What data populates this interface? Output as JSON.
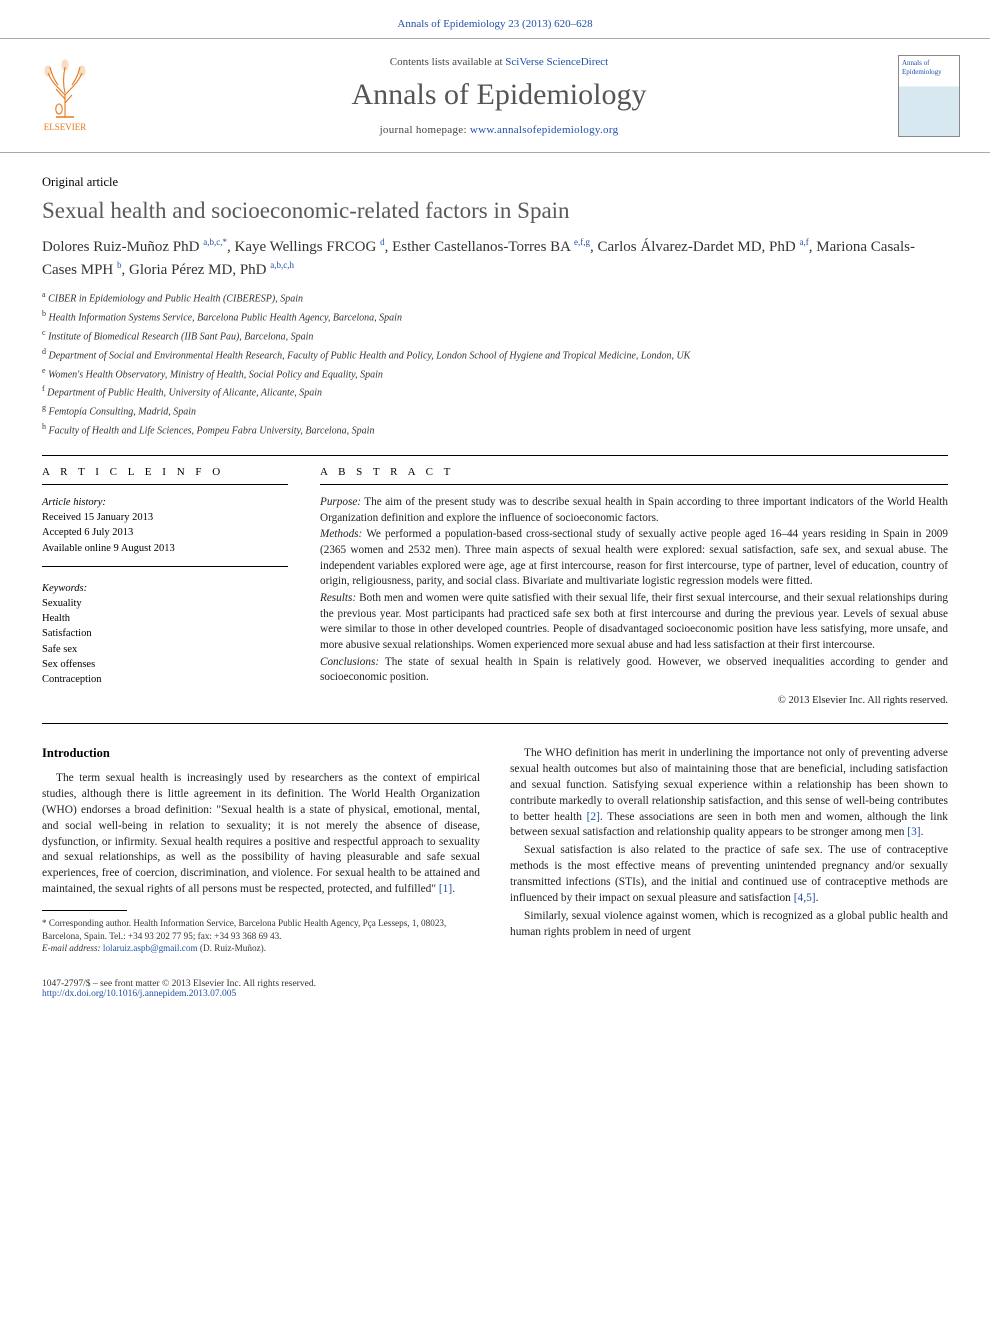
{
  "header_citation": "Annals of Epidemiology 23 (2013) 620–628",
  "journal_banner": {
    "contents_text": "Contents lists available at ",
    "sd_link": "SciVerse ScienceDirect",
    "journal_name": "Annals of Epidemiology",
    "homepage_prefix": "journal homepage: ",
    "homepage_url": "www.annalsofepidemiology.org",
    "publisher": "ELSEVIER",
    "cover_label_top": "Annals of",
    "cover_label_bottom": "Epidemiology"
  },
  "article": {
    "type": "Original article",
    "title": "Sexual health and socioeconomic-related factors in Spain",
    "authors_html": "Dolores Ruiz-Muñoz PhD <sup>a,b,c,*</sup>, Kaye Wellings FRCOG <sup>d</sup>, Esther Castellanos-Torres BA <sup>e,f,g</sup>, Carlos Álvarez-Dardet MD, PhD <sup>a,f</sup>, Mariona Casals-Cases MPH <sup>b</sup>, Gloria Pérez MD, PhD <sup>a,b,c,h</sup>",
    "affiliations": [
      "a CIBER in Epidemiology and Public Health (CIBERESP), Spain",
      "b Health Information Systems Service, Barcelona Public Health Agency, Barcelona, Spain",
      "c Institute of Biomedical Research (IIB Sant Pau), Barcelona, Spain",
      "d Department of Social and Environmental Health Research, Faculty of Public Health and Policy, London School of Hygiene and Tropical Medicine, London, UK",
      "e Women's Health Observatory, Ministry of Health, Social Policy and Equality, Spain",
      "f Department of Public Health, University of Alicante, Alicante, Spain",
      "g Femtopía Consulting, Madrid, Spain",
      "h Faculty of Health and Life Sciences, Pompeu Fabra University, Barcelona, Spain"
    ]
  },
  "article_info": {
    "heading": "A R T I C L E   I N F O",
    "history_title": "Article history:",
    "received": "Received 15 January 2013",
    "accepted": "Accepted 6 July 2013",
    "online": "Available online 9 August 2013",
    "keywords_title": "Keywords:",
    "keywords": [
      "Sexuality",
      "Health",
      "Satisfaction",
      "Safe sex",
      "Sex offenses",
      "Contraception"
    ]
  },
  "abstract": {
    "heading": "A B S T R A C T",
    "purpose_lead": "Purpose:",
    "purpose": " The aim of the present study was to describe sexual health in Spain according to three important indicators of the World Health Organization definition and explore the influence of socioeconomic factors.",
    "methods_lead": "Methods:",
    "methods": " We performed a population-based cross-sectional study of sexually active people aged 16–44 years residing in Spain in 2009 (2365 women and 2532 men). Three main aspects of sexual health were explored: sexual satisfaction, safe sex, and sexual abuse. The independent variables explored were age, age at first intercourse, reason for first intercourse, type of partner, level of education, country of origin, religiousness, parity, and social class. Bivariate and multivariate logistic regression models were fitted.",
    "results_lead": "Results:",
    "results": " Both men and women were quite satisfied with their sexual life, their first sexual intercourse, and their sexual relationships during the previous year. Most participants had practiced safe sex both at first intercourse and during the previous year. Levels of sexual abuse were similar to those in other developed countries. People of disadvantaged socioeconomic position have less satisfying, more unsafe, and more abusive sexual relationships. Women experienced more sexual abuse and had less satisfaction at their first intercourse.",
    "conclusions_lead": "Conclusions:",
    "conclusions": " The state of sexual health in Spain is relatively good. However, we observed inequalities according to gender and socioeconomic position.",
    "copyright": "© 2013 Elsevier Inc. All rights reserved."
  },
  "introduction": {
    "heading": "Introduction",
    "p1": "The term sexual health is increasingly used by researchers as the context of empirical studies, although there is little agreement in its definition. The World Health Organization (WHO) endorses a broad definition: \"Sexual health is a state of physical, emotional, mental, and social well-being in relation to sexuality; it is not merely the absence of disease, dysfunction, or infirmity. Sexual health requires a positive and respectful approach to sexuality and sexual relationships, as well as the possibility of having pleasurable and safe sexual experiences, free of coercion, discrimination, and violence. For sexual health to be attained and maintained, the sexual rights of all persons must be respected, protected, and fulfilled\" ",
    "ref1": "[1]",
    "p2": "The WHO definition has merit in underlining the importance not only of preventing adverse sexual health outcomes but also of maintaining those that are beneficial, including satisfaction and sexual function. Satisfying sexual experience within a relationship has been shown to contribute markedly to overall relationship satisfaction, and this sense of well-being contributes to better health ",
    "ref2": "[2]",
    "p2b": ". These associations are seen in both men and women, although the link between sexual satisfaction and relationship quality appears to be stronger among men ",
    "ref3": "[3]",
    "p3": "Sexual satisfaction is also related to the practice of safe sex. The use of contraceptive methods is the most effective means of preventing unintended pregnancy and/or sexually transmitted infections (STIs), and the initial and continued use of contraceptive methods are influenced by their impact on sexual pleasure and satisfaction ",
    "ref45": "[4,5]",
    "p4": "Similarly, sexual violence against women, which is recognized as a global public health and human rights problem in need of urgent"
  },
  "footnotes": {
    "corr": "* Corresponding author. Health Information Service, Barcelona Public Health Agency, Pça Lesseps, 1, 08023, Barcelona, Spain. Tel.: +34 93 202 77 95; fax: +34 93 368 69 43.",
    "email_lead": "E-mail address: ",
    "email": "lolaruiz.aspb@gmail.com",
    "email_tail": " (D. Ruiz-Muñoz)."
  },
  "footer": {
    "left": "1047-2797/$ – see front matter © 2013 Elsevier Inc. All rights reserved.",
    "doi": "http://dx.doi.org/10.1016/j.annepidem.2013.07.005"
  }
}
